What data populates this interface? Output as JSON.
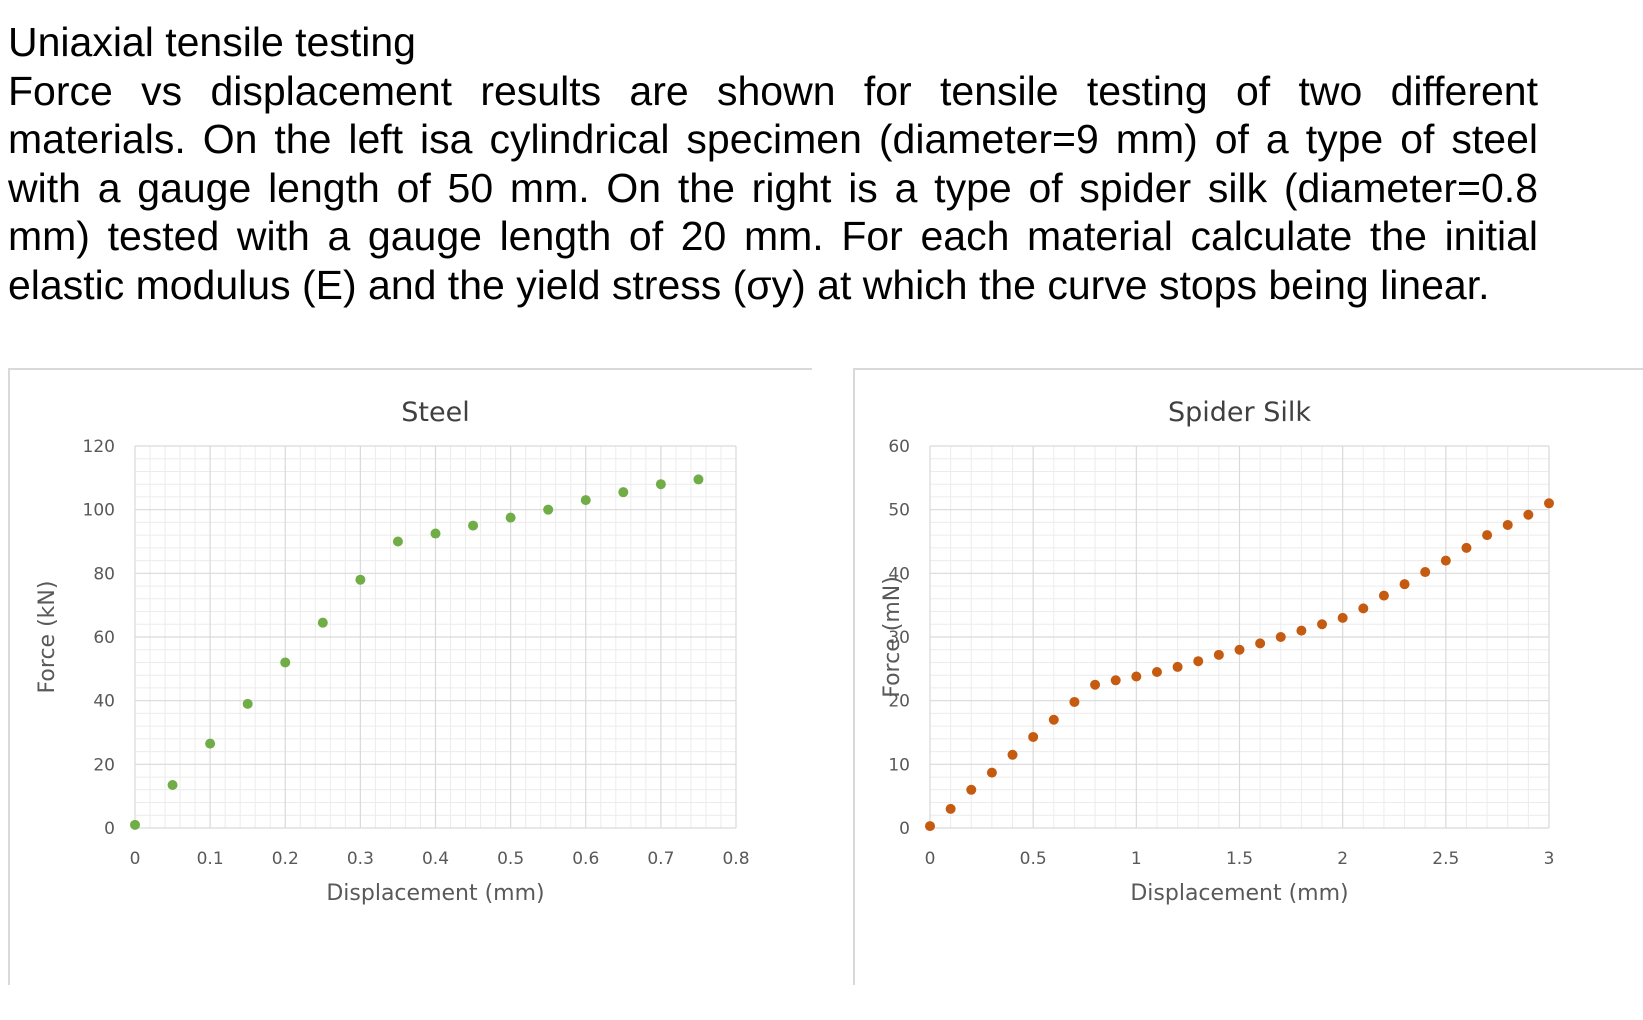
{
  "problem": {
    "heading": "Uniaxial tensile testing",
    "text": "Force vs displacement results are shown for tensile testing of two different materials. On the left isa cylindrical specimen (diameter=9 mm) of a type of steel with a gauge length of 50 mm. On the right is a type of spider silk (diameter=0.8 mm) tested with a gauge length of 20 mm. For each material calculate the initial elastic modulus (E) and the yield stress (σy) at which the curve stops being linear."
  },
  "chart_data": [
    {
      "type": "scatter",
      "title": "Steel",
      "xlabel": "Displacement (mm)",
      "ylabel": "Force (kN)",
      "xlim": [
        0,
        0.8
      ],
      "ylim": [
        0,
        120
      ],
      "xticks": [
        0,
        0.1,
        0.2,
        0.3,
        0.4,
        0.5,
        0.6,
        0.7,
        0.8
      ],
      "yticks": [
        0,
        20,
        40,
        60,
        80,
        100,
        120
      ],
      "xtick_labels": [
        "0",
        "0.1",
        "0.2",
        "0.3",
        "0.4",
        "0.5",
        "0.6",
        "0.7",
        "0.8"
      ],
      "ytick_labels": [
        "0",
        "20",
        "40",
        "60",
        "80",
        "100",
        "120"
      ],
      "grid": true,
      "marker_color": "#70ad47",
      "x": [
        0,
        0.05,
        0.1,
        0.15,
        0.2,
        0.25,
        0.3,
        0.35,
        0.4,
        0.45,
        0.5,
        0.55,
        0.6,
        0.65,
        0.7,
        0.75
      ],
      "y": [
        1,
        13.5,
        26.5,
        39,
        52,
        64.5,
        78,
        90,
        92.5,
        95,
        97.5,
        100,
        103,
        105.5,
        108,
        109.5
      ]
    },
    {
      "type": "scatter",
      "title": "Spider Silk",
      "xlabel": "Displacement (mm)",
      "ylabel": "Force (mN)",
      "xlim": [
        0,
        3
      ],
      "ylim": [
        0,
        60
      ],
      "xticks": [
        0,
        0.5,
        1,
        1.5,
        2,
        2.5,
        3
      ],
      "yticks": [
        0,
        10,
        20,
        30,
        40,
        50,
        60
      ],
      "xtick_labels": [
        "0",
        "0.5",
        "1",
        "1.5",
        "2",
        "2.5",
        "3"
      ],
      "ytick_labels": [
        "0",
        "10",
        "20",
        "30",
        "40",
        "50",
        "60"
      ],
      "grid": true,
      "marker_color": "#c55a11",
      "x": [
        0,
        0.1,
        0.2,
        0.3,
        0.4,
        0.5,
        0.6,
        0.7,
        0.8,
        0.9,
        1.0,
        1.1,
        1.2,
        1.3,
        1.4,
        1.5,
        1.6,
        1.7,
        1.8,
        1.9,
        2.0,
        2.1,
        2.2,
        2.3,
        2.4,
        2.5,
        2.6,
        2.7,
        2.8,
        2.9,
        3.0
      ],
      "y": [
        0.3,
        3,
        6,
        8.7,
        11.5,
        14.3,
        17,
        19.8,
        22.5,
        23.2,
        23.8,
        24.5,
        25.3,
        26.2,
        27.2,
        28,
        29,
        30,
        31,
        32,
        33,
        34.5,
        36.5,
        38.3,
        40.2,
        42,
        44,
        46,
        47.6,
        49.2,
        51
      ]
    }
  ]
}
